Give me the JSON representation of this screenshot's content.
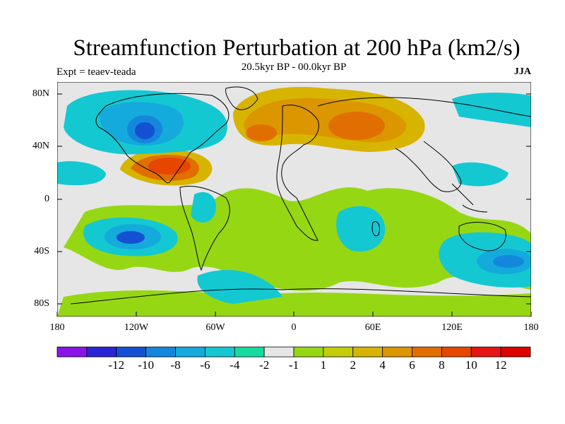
{
  "header": {
    "title": "Streamfunction Perturbation at 200 hPa (km2/s)",
    "subtitle": "20.5kyr BP - 00.0kyr BP",
    "left": "Expt = teaev-teada",
    "right": "JJA"
  },
  "axes": {
    "lat_labels": [
      "80N",
      "40N",
      "0",
      "40S",
      "80S"
    ],
    "lon_labels": [
      "180",
      "120W",
      "60W",
      "0",
      "60E",
      "120E",
      "180"
    ]
  },
  "colorbar": {
    "colors": [
      "#8a14e8",
      "#2a24d6",
      "#1450d2",
      "#1487dc",
      "#14aadc",
      "#14c8d2",
      "#14dca0",
      "#e6e6e6",
      "#96d714",
      "#c3cd0a",
      "#d7b400",
      "#dc9600",
      "#e16e00",
      "#e64600",
      "#e61414",
      "#dc0000"
    ],
    "labels": [
      "-12",
      "-10",
      "-8",
      "-6",
      "-4",
      "-2",
      "-1",
      "1",
      "2",
      "4",
      "6",
      "8",
      "10",
      "12"
    ]
  },
  "map": {
    "background_color": "#e6e6e6",
    "units": "km2/s",
    "lon_range": [
      -180,
      180
    ],
    "lat_range": [
      -90,
      90
    ],
    "projection": "cylindrical-equidistant"
  }
}
